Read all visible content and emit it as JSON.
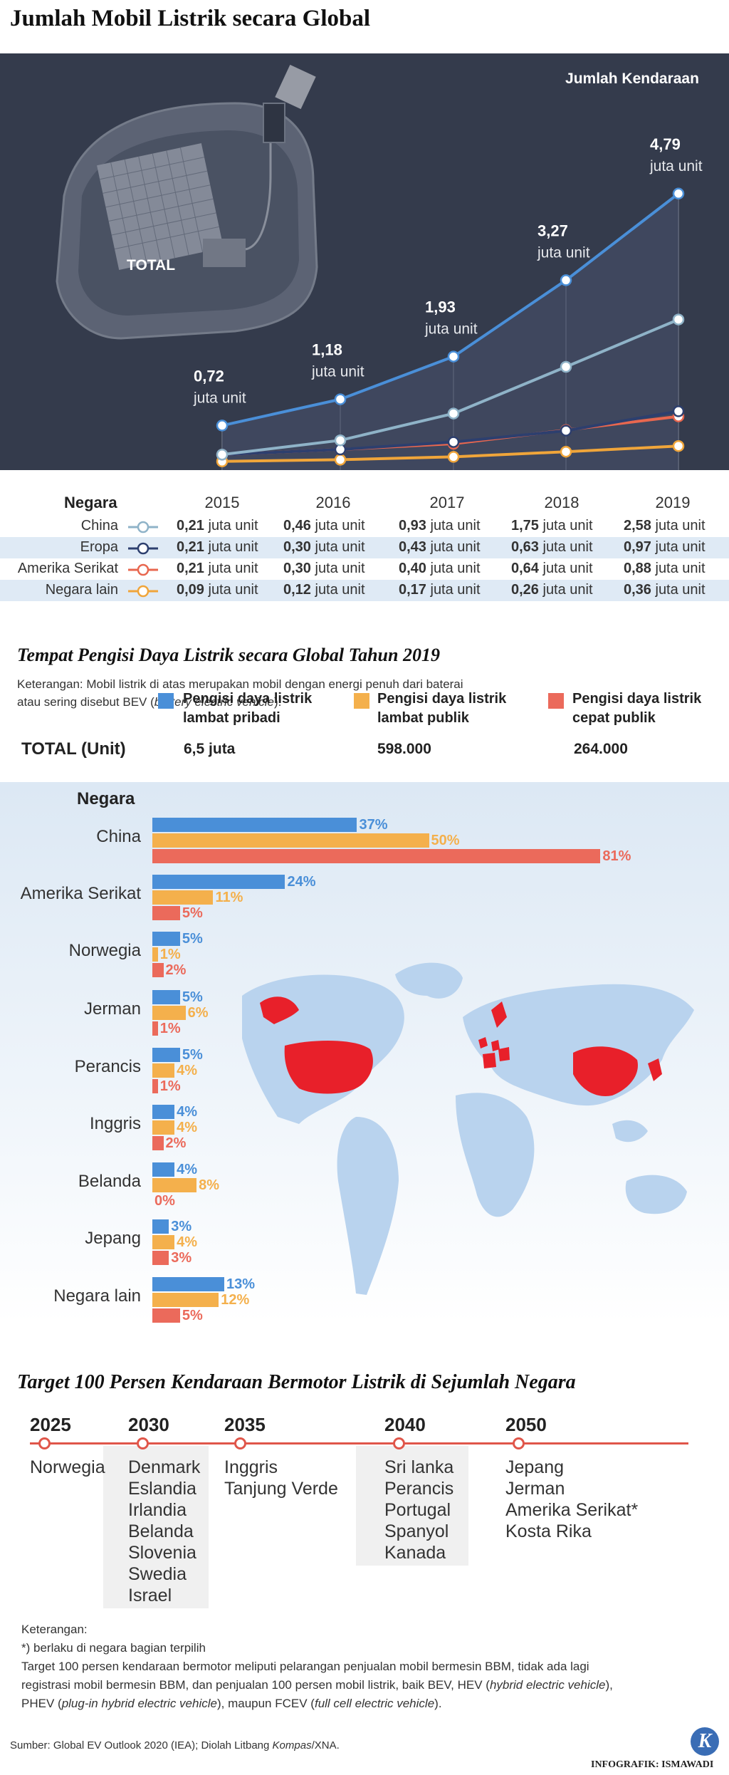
{
  "title": "Jumlah Mobil Listrik secara Global",
  "chart_data": [
    {
      "type": "line",
      "title": "Jumlah Kendaraan",
      "x": [
        "2015",
        "2016",
        "2017",
        "2018",
        "2019"
      ],
      "total_label": "TOTAL",
      "total_unit": "juta unit",
      "series": [
        {
          "name": "TOTAL",
          "values": [
            0.72,
            1.18,
            1.93,
            3.27,
            4.79
          ],
          "labels": [
            "0,72",
            "1,18",
            "1,93",
            "3,27",
            "4,79"
          ],
          "color": "#4a8fd8"
        },
        {
          "name": "China",
          "values": [
            0.21,
            0.46,
            0.93,
            1.75,
            2.58
          ],
          "color": "#8fb3c8"
        },
        {
          "name": "Eropa",
          "values": [
            0.21,
            0.3,
            0.43,
            0.63,
            0.97
          ],
          "color": "#2d3f6e"
        },
        {
          "name": "Amerika Serikat",
          "values": [
            0.21,
            0.3,
            0.4,
            0.64,
            0.88
          ],
          "color": "#e8674f"
        },
        {
          "name": "Negara lain",
          "values": [
            0.09,
            0.12,
            0.17,
            0.26,
            0.36
          ],
          "color": "#f0a53a"
        }
      ]
    },
    {
      "type": "bar",
      "title": "Tempat Pengisi Daya Listrik secara Global Tahun 2019",
      "categories": [
        "China",
        "Amerika Serikat",
        "Norwegia",
        "Jerman",
        "Perancis",
        "Inggris",
        "Belanda",
        "Jepang",
        "Negara lain"
      ],
      "series": [
        {
          "name": "Pengisi daya listrik lambat pribadi",
          "values": [
            37,
            24,
            5,
            5,
            5,
            4,
            4,
            3,
            13
          ],
          "color": "#4a8fd8"
        },
        {
          "name": "Pengisi daya listrik lambat publik",
          "values": [
            50,
            11,
            1,
            6,
            4,
            4,
            8,
            4,
            12
          ],
          "color": "#f4b04c"
        },
        {
          "name": "Pengisi daya listrik cepat publik",
          "values": [
            81,
            5,
            2,
            1,
            1,
            2,
            0,
            3,
            5
          ],
          "color": "#eb6a5b"
        }
      ]
    }
  ],
  "table": {
    "header": "Negara",
    "unit": "juta unit",
    "rows": [
      {
        "name": "China",
        "values": [
          "0,21",
          "0,46",
          "0,93",
          "1,75",
          "2,58"
        ]
      },
      {
        "name": "Eropa",
        "values": [
          "0,21",
          "0,30",
          "0,43",
          "0,63",
          "0,97"
        ]
      },
      {
        "name": "Amerika Serikat",
        "values": [
          "0,21",
          "0,30",
          "0,40",
          "0,64",
          "0,88"
        ]
      },
      {
        "name": "Negara lain",
        "values": [
          "0,09",
          "0,12",
          "0,17",
          "0,26",
          "0,36"
        ]
      }
    ]
  },
  "note1": {
    "line1": "Keterangan: Mobil listrik di atas merupakan mobil dengan energi penuh dari baterai",
    "line2a": "atau sering disebut BEV (",
    "line2b": "battery electric vehicle",
    "line2c": ")."
  },
  "charging": {
    "title": "Tempat Pengisi Daya Listrik secara Global Tahun 2019",
    "legend": [
      {
        "line1": "Pengisi daya listrik",
        "line2": "lambat pribadi",
        "total": "6,5 juta"
      },
      {
        "line1": "Pengisi daya listrik",
        "line2": "lambat publik",
        "total": "598.000"
      },
      {
        "line1": "Pengisi daya listrik",
        "line2": "cepat publik",
        "total": "264.000"
      }
    ],
    "total_label": "TOTAL (Unit)",
    "country_header": "Negara"
  },
  "target": {
    "title": "Target 100 Persen Kendaraan Bermotor Listrik di Sejumlah Negara",
    "columns": [
      {
        "year": "2025",
        "countries": [
          "Norwegia"
        ]
      },
      {
        "year": "2030",
        "countries": [
          "Denmark",
          "Eslandia",
          "Irlandia",
          "Belanda",
          "Slovenia",
          "Swedia",
          "Israel"
        ]
      },
      {
        "year": "2035",
        "countries": [
          "Inggris",
          "Tanjung Verde"
        ]
      },
      {
        "year": "2040",
        "countries": [
          "Sri lanka",
          "Perancis",
          "Portugal",
          "Spanyol",
          "Kanada"
        ]
      },
      {
        "year": "2050",
        "countries": [
          "Jepang",
          "Jerman",
          "Amerika Serikat*",
          "Kosta Rika"
        ]
      }
    ]
  },
  "footnotes": {
    "label": "Keterangan:",
    "star": "*) berlaku di negara bagian terpilih",
    "body1": "Target 100 persen kendaraan bermotor meliputi pelarangan penjualan mobil bermesin BBM, tidak ada lagi",
    "body2a": "registrasi mobil bermesin BBM, dan penjualan 100 persen mobil listrik, baik BEV, HEV (",
    "body2b": "hybrid electric vehicle",
    "body2c": "),",
    "body3a": "PHEV (",
    "body3b": "plug-in hybrid electric vehicle",
    "body3c": "), maupun FCEV (",
    "body3d": "full cell electric vehicle",
    "body3e": ").",
    "source_a": "Sumber: Global EV Outlook 2020 (IEA); Diolah Litbang ",
    "source_b": "Kompas",
    "source_c": "/XNA.",
    "credit": "INFOGRAFIK: ISMAWADI",
    "logo": "K"
  }
}
